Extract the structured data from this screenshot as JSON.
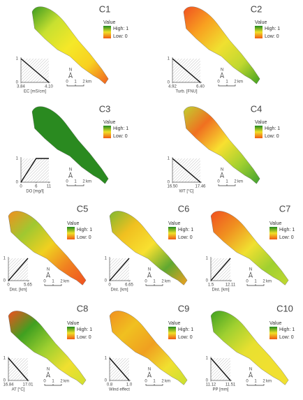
{
  "legend": {
    "title": "Value",
    "high": "High: 1",
    "low": "Low: 0",
    "colors": [
      "#1f8a1f",
      "#f0e028",
      "#f05a14"
    ]
  },
  "scale": {
    "north": "N",
    "ticks": [
      "0",
      "1",
      "2"
    ],
    "unit": "km"
  },
  "panels": [
    {
      "label": "C1",
      "map_colors": [
        "#3a9a20",
        "#c8e030",
        "#f5e828",
        "#f8d020",
        "#f06020"
      ],
      "inset": {
        "type": "line",
        "x": [
          3.84,
          4.1
        ],
        "y": [
          1,
          0
        ],
        "xlim": [
          3.84,
          4.1
        ],
        "ylim": [
          0,
          1
        ],
        "xticks": [
          3.84,
          {
            "value": 4.1,
            "label": "4.10"
          }
        ],
        "yticks": [
          0,
          1
        ],
        "xlabel": "EC [mS/cm]"
      }
    },
    {
      "label": "C2",
      "map_colors": [
        "#f05020",
        "#f8a020",
        "#f0e030",
        "#c0d830",
        "#40a020"
      ],
      "inset": {
        "type": "line",
        "x": [
          4.92,
          6.4
        ],
        "y": [
          1,
          0
        ],
        "xlim": [
          4.92,
          6.4
        ],
        "ylim": [
          0,
          1
        ],
        "xticks": [
          4.92,
          {
            "value": 6.4,
            "label": "6.40"
          }
        ],
        "yticks": [
          0,
          1
        ],
        "xlabel": "Turb. [FNU]"
      }
    },
    {
      "label": "C3",
      "map_colors": [
        "#2a8a20",
        "#2a8a20"
      ],
      "inset": {
        "type": "line",
        "x": [
          0,
          6,
          11
        ],
        "y": [
          0,
          1,
          1
        ],
        "xlim": [
          0,
          11
        ],
        "ylim": [
          0,
          1
        ],
        "xticks": [
          0,
          6,
          11
        ],
        "yticks": [
          0,
          1
        ],
        "xlabel": "DO [mg/l]"
      }
    },
    {
      "label": "C4",
      "map_colors": [
        "#c0d030",
        "#f07020",
        "#f8e030",
        "#a0d030",
        "#40a030"
      ],
      "inset": {
        "type": "line",
        "x": [
          16.5,
          17.46
        ],
        "y": [
          1,
          0
        ],
        "xlim": [
          16.5,
          17.46
        ],
        "ylim": [
          0,
          1
        ],
        "xticks": [
          {
            "value": 16.5,
            "label": "16.50"
          },
          17.46
        ],
        "yticks": [
          0,
          1
        ],
        "xlabel": "WT [°C]"
      }
    },
    {
      "label": "C5",
      "map_colors": [
        "#f09020",
        "#a0c830",
        "#f0d020",
        "#f08020",
        "#f05020"
      ],
      "inset": {
        "type": "line",
        "x": [
          0,
          5.65
        ],
        "y": [
          0,
          1
        ],
        "xlim": [
          0,
          5.65
        ],
        "ylim": [
          0,
          1
        ],
        "xticks": [
          0,
          5.65
        ],
        "yticks": [
          0,
          1
        ],
        "xlabel": "Dist. [km]"
      }
    },
    {
      "label": "C6",
      "map_colors": [
        "#80b830",
        "#f0c020",
        "#f8e030",
        "#60a830",
        "#f0a020"
      ],
      "inset": {
        "type": "line",
        "x": [
          0,
          6.65
        ],
        "y": [
          0,
          1
        ],
        "xlim": [
          0,
          6.65
        ],
        "ylim": [
          0,
          1
        ],
        "xticks": [
          0,
          6.65
        ],
        "yticks": [
          0,
          1
        ],
        "xlabel": "Dist. [km]"
      }
    },
    {
      "label": "C7",
      "map_colors": [
        "#f05020",
        "#f09020",
        "#f0e030",
        "#a0d030",
        "#c0d830"
      ],
      "inset": {
        "type": "line",
        "x": [
          1.5,
          12.11
        ],
        "y": [
          0,
          1
        ],
        "xlim": [
          1.5,
          12.11
        ],
        "ylim": [
          0,
          1
        ],
        "xticks": [
          1.5,
          12.11
        ],
        "yticks": [
          0,
          1
        ],
        "xlabel": "Dist. [km]"
      }
    },
    {
      "label": "C8",
      "map_colors": [
        "#f05020",
        "#40a020",
        "#a0d030",
        "#f0e030",
        "#d0e030"
      ],
      "inset": {
        "type": "line",
        "x": [
          16.84,
          17.01
        ],
        "y": [
          1,
          0
        ],
        "xlim": [
          16.84,
          17.01
        ],
        "ylim": [
          0,
          1
        ],
        "xticks": [
          16.84,
          17.01
        ],
        "yticks": [
          0,
          1
        ],
        "xlabel": "AT [°C]"
      }
    },
    {
      "label": "C9",
      "map_colors": [
        "#f09020",
        "#f0c020",
        "#f0a020",
        "#f0e030",
        "#c8e030"
      ],
      "inset": {
        "type": "line",
        "x": [
          0.8,
          1
        ],
        "y": [
          1,
          0
        ],
        "xlim": [
          0.8,
          1
        ],
        "ylim": [
          0,
          1
        ],
        "xticks": [
          0.8,
          {
            "value": 1,
            "label": "1.0"
          }
        ],
        "yticks": [
          0,
          1
        ],
        "xlabel": "Wind effect"
      }
    },
    {
      "label": "C10",
      "map_colors": [
        "#40a020",
        "#a0d030",
        "#e8e030",
        "#f0e030",
        "#f0e030"
      ],
      "inset": {
        "type": "line",
        "x": [
          11.12,
          11.51
        ],
        "y": [
          1,
          0
        ],
        "xlim": [
          11.12,
          11.51
        ],
        "ylim": [
          0,
          1
        ],
        "xticks": [
          11.12,
          11.51
        ],
        "yticks": [
          0,
          1
        ],
        "xlabel": "PP [mm]"
      }
    }
  ]
}
